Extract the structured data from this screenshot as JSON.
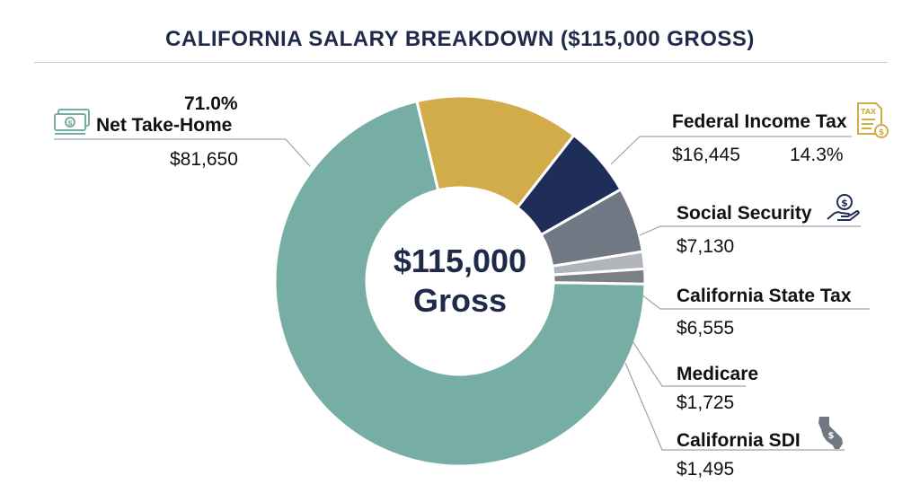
{
  "title": "CALIFORNIA SALARY BREAKDOWN ($115,000 GROSS)",
  "center": {
    "amount": "$115,000",
    "label": "Gross"
  },
  "colors": {
    "net": "#76ada4",
    "federal": "#d3ac4a",
    "social": "#1f2e58",
    "state": "#707884",
    "medicare": "#b1b4b9",
    "sdi": "#7c7f85",
    "title": "#1f2a4a",
    "leader": "#9ea3aa"
  },
  "labels": {
    "net": {
      "pct": "71.0%",
      "name": "Net Take-Home",
      "amount": "$81,650",
      "icon": "cash-icon"
    },
    "federal": {
      "name": "Federal Income Tax",
      "amount": "$16,445",
      "pct": "14.3%",
      "icon": "tax-document-icon"
    },
    "social": {
      "name": "Social Security",
      "amount": "$7,130",
      "icon": "hand-coin-icon"
    },
    "state": {
      "name": "California State Tax",
      "amount": "$6,555"
    },
    "medicare": {
      "name": "Medicare",
      "amount": "$1,725"
    },
    "sdi": {
      "name": "California SDI",
      "amount": "$1,495",
      "icon": "california-map-icon"
    }
  },
  "chart_data": {
    "type": "pie",
    "title": "CALIFORNIA SALARY BREAKDOWN ($115,000 GROSS)",
    "total": 115000,
    "categories": [
      "Net Take-Home",
      "Federal Income Tax",
      "Social Security",
      "California State Tax",
      "Medicare",
      "California SDI"
    ],
    "values": [
      81650,
      16445,
      7130,
      6555,
      1725,
      1495
    ],
    "percent_labels": {
      "Net Take-Home": "71.0%",
      "Federal Income Tax": "14.3%"
    },
    "donut": true
  }
}
